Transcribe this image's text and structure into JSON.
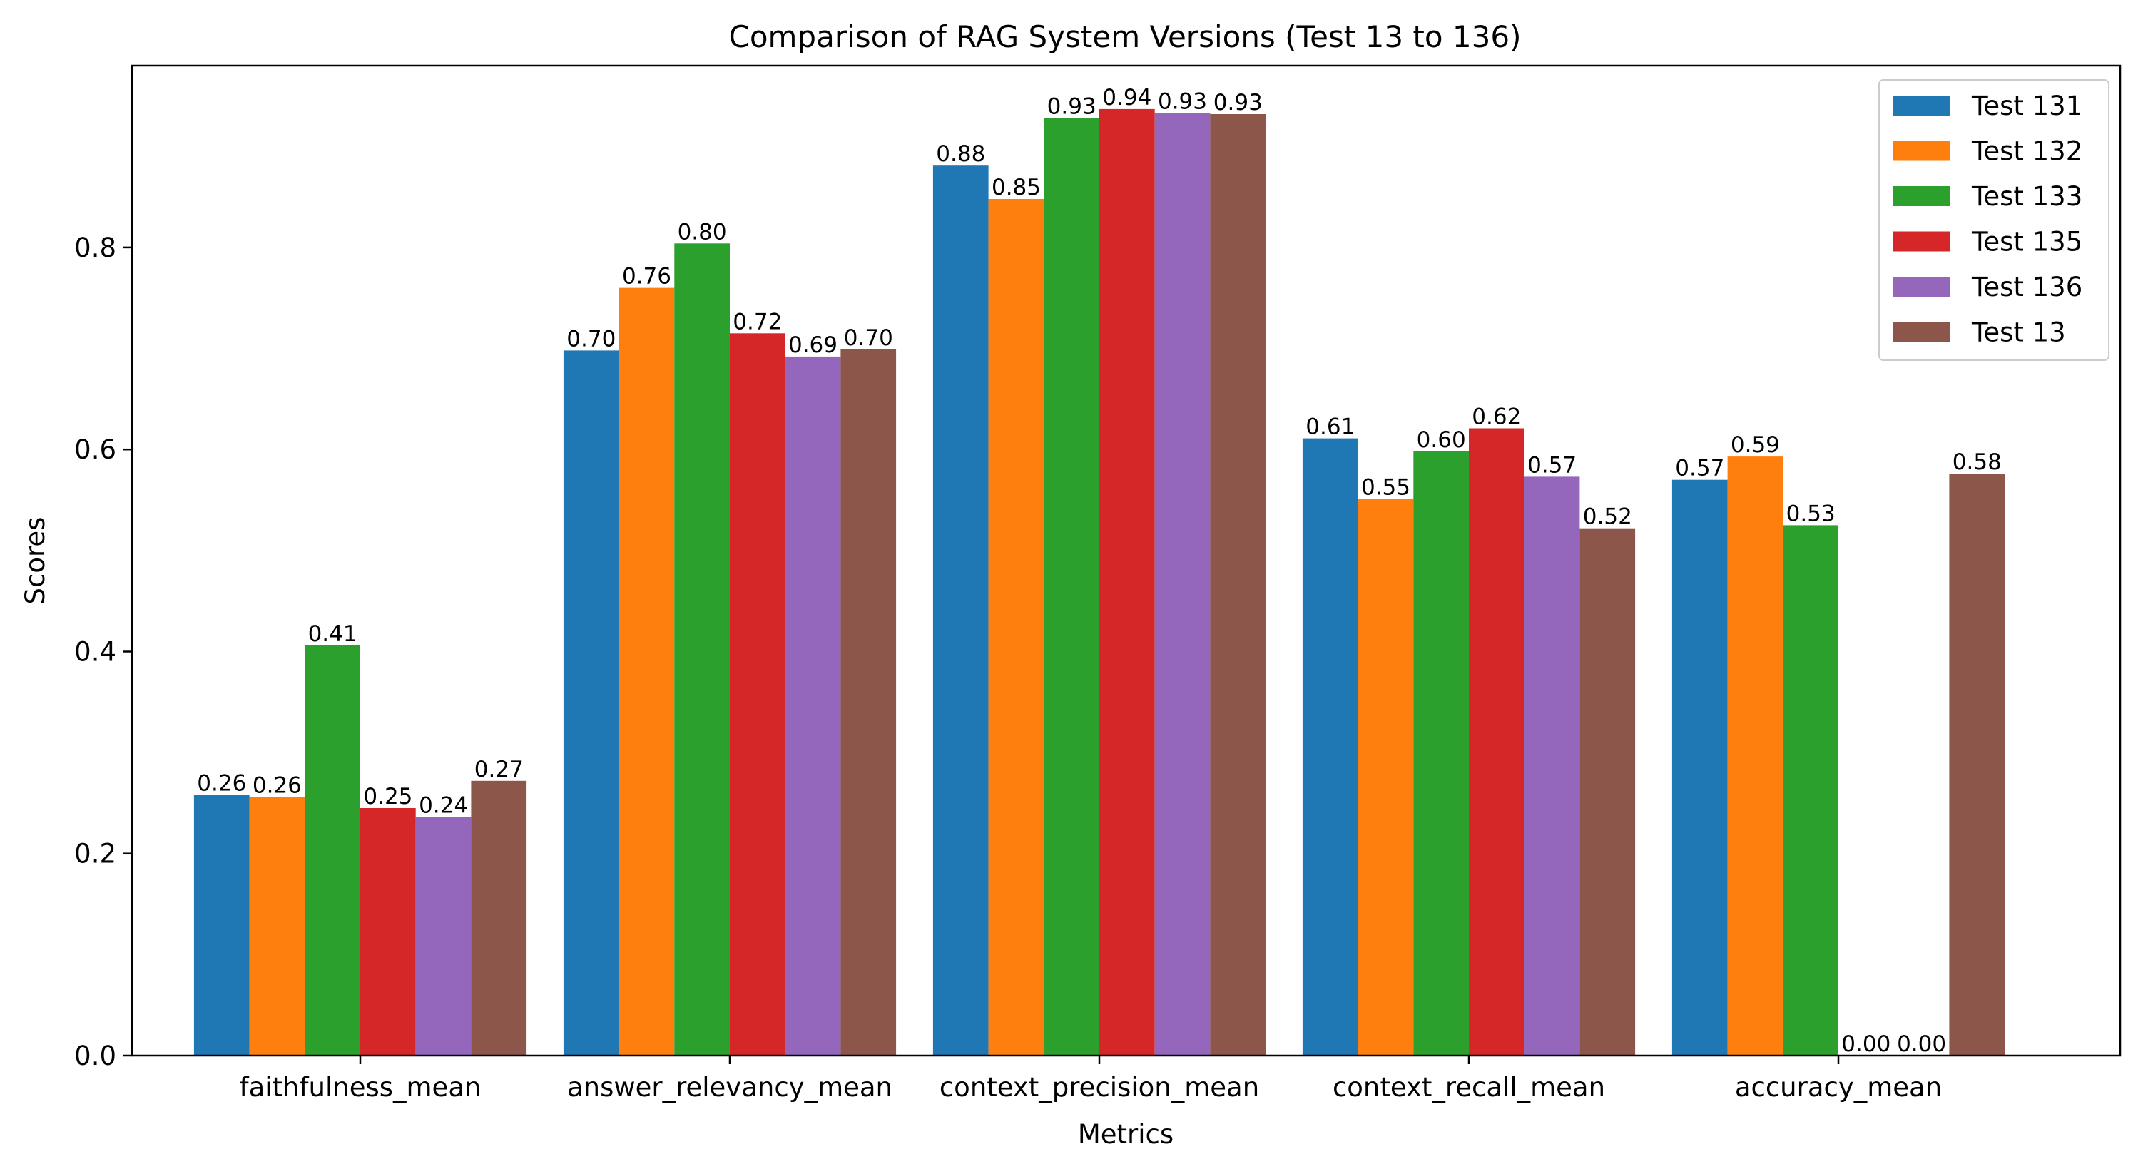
{
  "chart_data": {
    "type": "bar",
    "title": "Comparison of RAG System Versions (Test 13 to 136)",
    "xlabel": "Metrics",
    "ylabel": "Scores",
    "ylim": [
      0,
      0.98
    ],
    "yticks": [
      "0.0",
      "0.2",
      "0.4",
      "0.6",
      "0.8"
    ],
    "grid": false,
    "legend_position": "top-right",
    "categories": [
      "faithfulness_mean",
      "answer_relevancy_mean",
      "context_precision_mean",
      "context_recall_mean",
      "accuracy_mean"
    ],
    "series": [
      {
        "name": "Test 131",
        "color": "#1f77b4",
        "values": [
          0.258,
          0.698,
          0.881,
          0.611,
          0.57
        ],
        "labels": [
          "0.26",
          "0.70",
          "0.88",
          "0.61",
          "0.57"
        ]
      },
      {
        "name": "Test 132",
        "color": "#ff7f0e",
        "values": [
          0.256,
          0.76,
          0.848,
          0.551,
          0.593
        ],
        "labels": [
          "0.26",
          "0.76",
          "0.85",
          "0.55",
          "0.59"
        ]
      },
      {
        "name": "Test 133",
        "color": "#2ca02c",
        "values": [
          0.406,
          0.804,
          0.928,
          0.598,
          0.525
        ],
        "labels": [
          "0.41",
          "0.80",
          "0.93",
          "0.60",
          "0.53"
        ]
      },
      {
        "name": "Test 135",
        "color": "#d62728",
        "values": [
          0.245,
          0.715,
          0.937,
          0.621,
          0.0
        ],
        "labels": [
          "0.25",
          "0.72",
          "0.94",
          "0.62",
          "0.00"
        ]
      },
      {
        "name": "Test 136",
        "color": "#9467bd",
        "values": [
          0.236,
          0.692,
          0.933,
          0.573,
          0.0
        ],
        "labels": [
          "0.24",
          "0.69",
          "0.93",
          "0.57",
          "0.00"
        ]
      },
      {
        "name": "Test 13",
        "color": "#8c564b",
        "values": [
          0.272,
          0.699,
          0.932,
          0.522,
          0.576
        ],
        "labels": [
          "0.27",
          "0.70",
          "0.93",
          "0.52",
          "0.58"
        ]
      }
    ]
  }
}
